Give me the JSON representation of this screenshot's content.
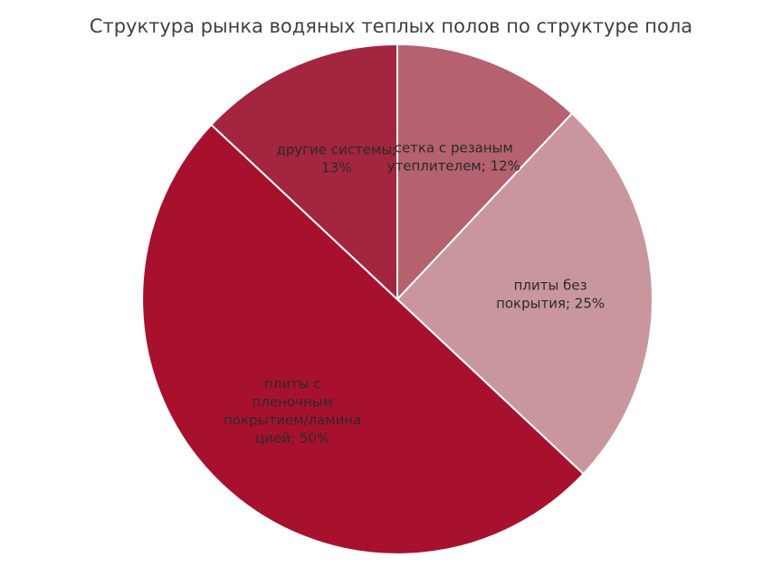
{
  "chart_data": {
    "type": "pie",
    "title": "Структура рынка водяных теплых полов по структуре пола",
    "values": [
      12,
      25,
      50,
      13
    ],
    "value_labels": [
      "сетка с резаным утеплителем; 12%",
      "плиты без покрытия; 25%",
      "плиты с пленочным покрытием/ламинацией; 50%",
      "другие системы; 13%"
    ],
    "colors": [
      "#b5616f",
      "#c9969e",
      "#a8112e",
      "#a32540"
    ]
  }
}
